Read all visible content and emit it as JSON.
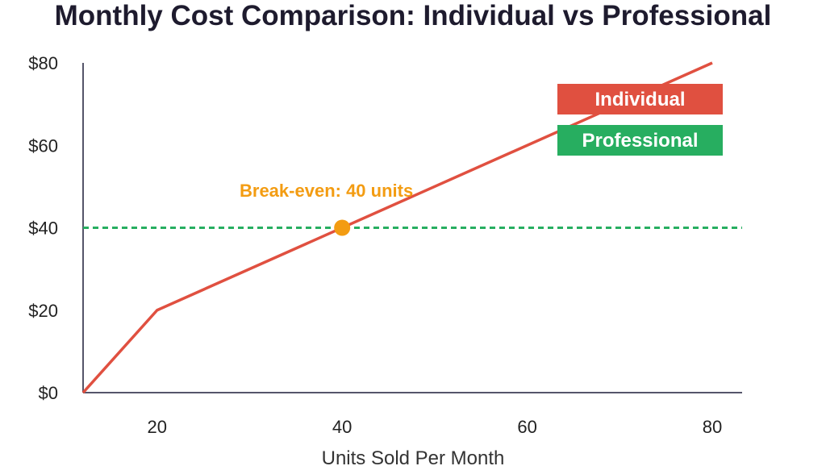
{
  "chart_data": {
    "type": "line",
    "title": "Monthly Cost Comparison: Individual vs Professional",
    "xlabel": "Units Sold Per Month",
    "ylabel": "",
    "xlim": [
      12,
      80
    ],
    "ylim": [
      0,
      80
    ],
    "x_ticks": [
      20,
      40,
      60,
      80
    ],
    "y_ticks": [
      0,
      20,
      40,
      60,
      80
    ],
    "y_tick_labels": [
      "$0",
      "$20",
      "$40",
      "$60",
      "$80"
    ],
    "grid": false,
    "legend_position": "top-right",
    "series": [
      {
        "name": "Individual",
        "color": "#e05040",
        "style": "solid",
        "x": [
          12,
          20,
          80
        ],
        "y": [
          0,
          20,
          80
        ]
      },
      {
        "name": "Professional",
        "color": "#27ae60",
        "style": "dashed",
        "x": [
          12,
          80
        ],
        "y": [
          40,
          40
        ]
      }
    ],
    "annotations": [
      {
        "text": "Break-even: 40 units",
        "x": 40,
        "y": 40,
        "color": "#f39c12"
      }
    ]
  }
}
